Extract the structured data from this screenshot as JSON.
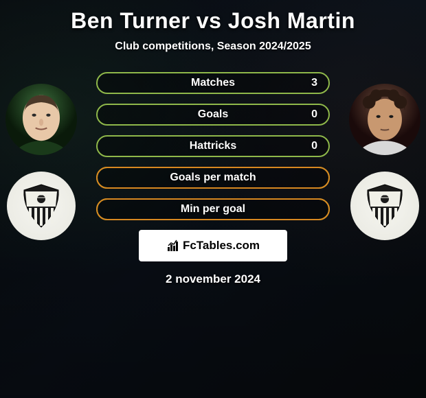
{
  "title": "Ben Turner vs Josh Martin",
  "subtitle": "Club competitions, Season 2024/2025",
  "colors": {
    "bar_border": "#8fb84a",
    "fill_border": "#d88820"
  },
  "stats": [
    {
      "label": "Matches",
      "value": "3",
      "fill_pct": 0
    },
    {
      "label": "Goals",
      "value": "0",
      "fill_pct": 0
    },
    {
      "label": "Hattricks",
      "value": "0",
      "fill_pct": 0
    },
    {
      "label": "Goals per match",
      "value": "",
      "fill_pct": 100
    },
    {
      "label": "Min per goal",
      "value": "",
      "fill_pct": 100
    }
  ],
  "brand": "FcTables.com",
  "date": "2 november 2024"
}
